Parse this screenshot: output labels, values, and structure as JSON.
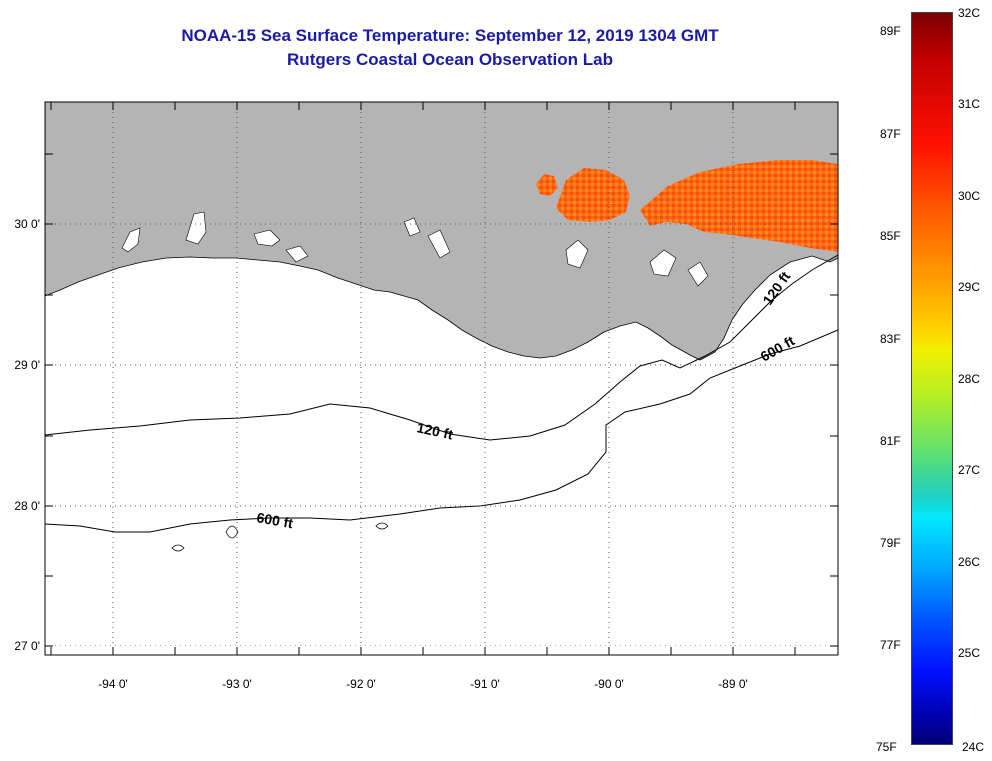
{
  "title": {
    "line1": "NOAA-15 Sea Surface Temperature:  September 12, 2019 1304 GMT",
    "line2": "Rutgers Coastal Ocean Observation Lab"
  },
  "map": {
    "lon_labels": [
      "-94 0'",
      "-93 0'",
      "-92 0'",
      "-91 0'",
      "-90 0'",
      "-89 0'"
    ],
    "lat_labels": [
      "30 0'",
      "29 0'",
      "28 0'",
      "27 0'"
    ],
    "contour_labels": [
      "120 ft",
      "600 ft",
      "120 ft",
      "600 ft"
    ],
    "colors": {
      "land": "#b4b4b4",
      "water": "#ffffff",
      "sst_warm": "#ff6a10"
    }
  },
  "colorbar": {
    "fahrenheit": [
      "89F",
      "87F",
      "85F",
      "83F",
      "81F",
      "79F",
      "77F",
      "75F"
    ],
    "celsius": [
      "32C",
      "31C",
      "30C",
      "29C",
      "28C",
      "27C",
      "26C",
      "25C",
      "24C"
    ]
  }
}
